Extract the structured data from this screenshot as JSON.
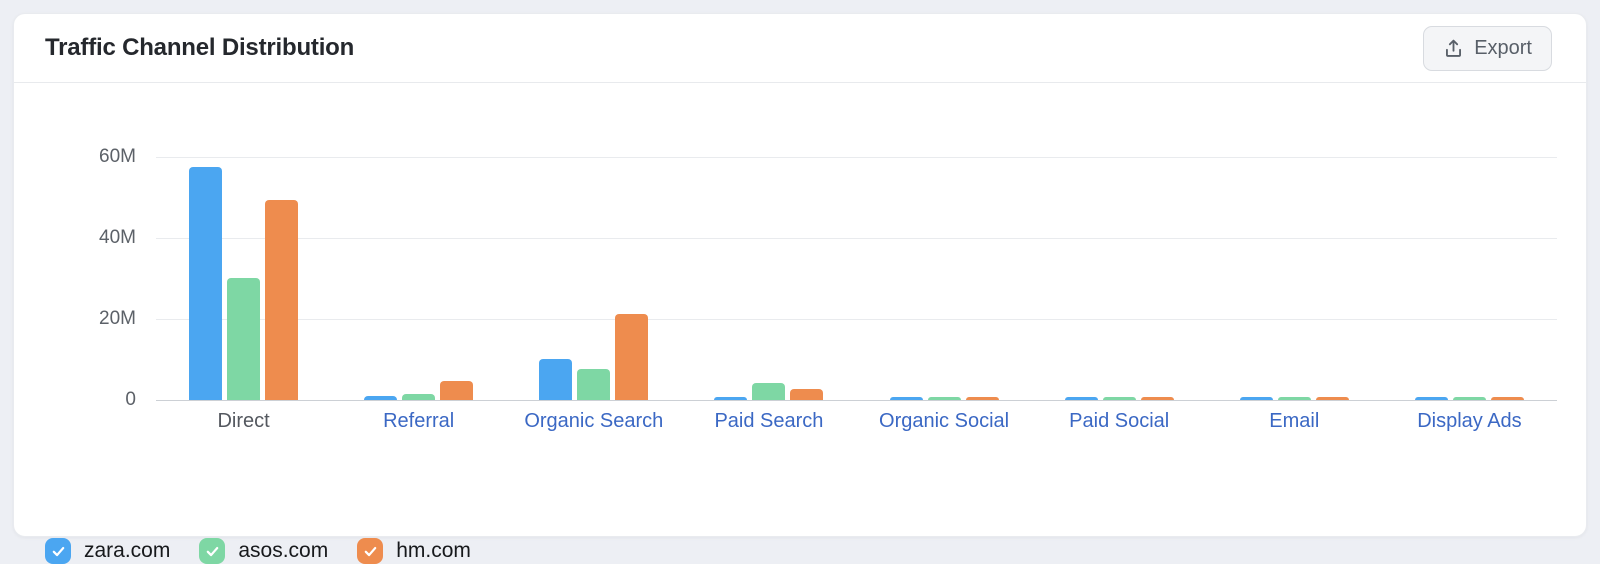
{
  "card": {
    "title": "Traffic Channel Distribution",
    "export_button": {
      "label": "Export",
      "icon": "upload-icon"
    }
  },
  "chart_data": {
    "type": "bar",
    "title": "Traffic Channel Distribution",
    "unit": "M visits",
    "categories": [
      "Direct",
      "Referral",
      "Organic Search",
      "Paid Search",
      "Organic Social",
      "Paid Social",
      "Email",
      "Display Ads"
    ],
    "series": [
      {
        "name": "zara.com",
        "color": "#4BA6F1",
        "values": [
          57.5,
          0.9,
          10.1,
          0.8,
          0.7,
          0.7,
          0.7,
          0.7
        ]
      },
      {
        "name": "asos.com",
        "color": "#7ED7A4",
        "values": [
          30.2,
          1.4,
          7.6,
          4.3,
          0.5,
          0.6,
          0.6,
          0.6
        ]
      },
      {
        "name": "hm.com",
        "color": "#EE8C4E",
        "values": [
          49.5,
          4.7,
          21.2,
          2.7,
          0.7,
          0.6,
          0.7,
          0.5
        ]
      }
    ],
    "ylim": [
      0,
      60
    ],
    "y_ticks": [
      "60M",
      "40M",
      "20M",
      "0"
    ],
    "grid": true,
    "legend_position": "bottom",
    "plain_categories": [
      "Direct"
    ],
    "category_link_color": "#3b68c4"
  },
  "legend": {
    "items": [
      {
        "label": "zara.com",
        "checked": true,
        "color": "#4BA6F1"
      },
      {
        "label": "asos.com",
        "checked": true,
        "color": "#7ED7A4"
      },
      {
        "label": "hm.com",
        "checked": true,
        "color": "#EE8C4E"
      }
    ]
  }
}
